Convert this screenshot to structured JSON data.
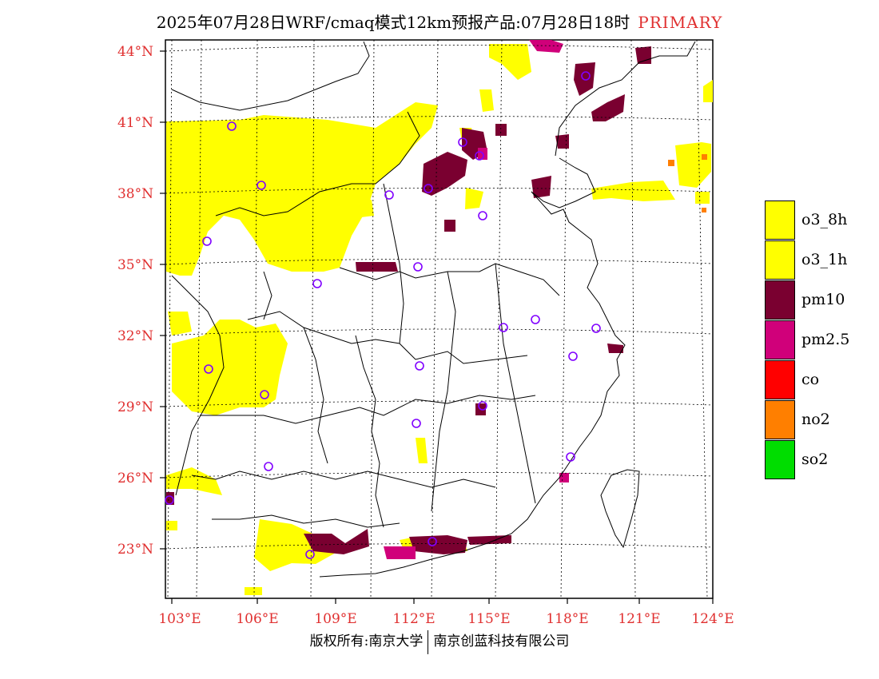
{
  "title": {
    "main": "2025年07月28日WRF/cmaq模式12km预报产品:07月28日18时",
    "tag": "PRIMARY"
  },
  "axes": {
    "lat_labels": [
      "44°N",
      "41°N",
      "38°N",
      "35°N",
      "32°N",
      "29°N",
      "26°N",
      "23°N"
    ],
    "lon_labels": [
      "103°E",
      "106°E",
      "109°E",
      "112°E",
      "115°E",
      "118°E",
      "121°E",
      "124°E"
    ]
  },
  "legend": [
    {
      "label": "o3_8h",
      "color": "#ffff00"
    },
    {
      "label": "o3_1h",
      "color": "#ffff00"
    },
    {
      "label": "pm10",
      "color": "#7a0030"
    },
    {
      "label": "pm2.5",
      "color": "#d0007a"
    },
    {
      "label": "co",
      "color": "#ff0000"
    },
    {
      "label": "no2",
      "color": "#ff7f00"
    },
    {
      "label": "so2",
      "color": "#00dd00"
    }
  ],
  "footer": {
    "left": "版权所有:南京大学",
    "right": "南京创蓝科技有限公司"
  },
  "colors": {
    "axis_label": "#e03030",
    "station_marker": "#8000ff"
  }
}
